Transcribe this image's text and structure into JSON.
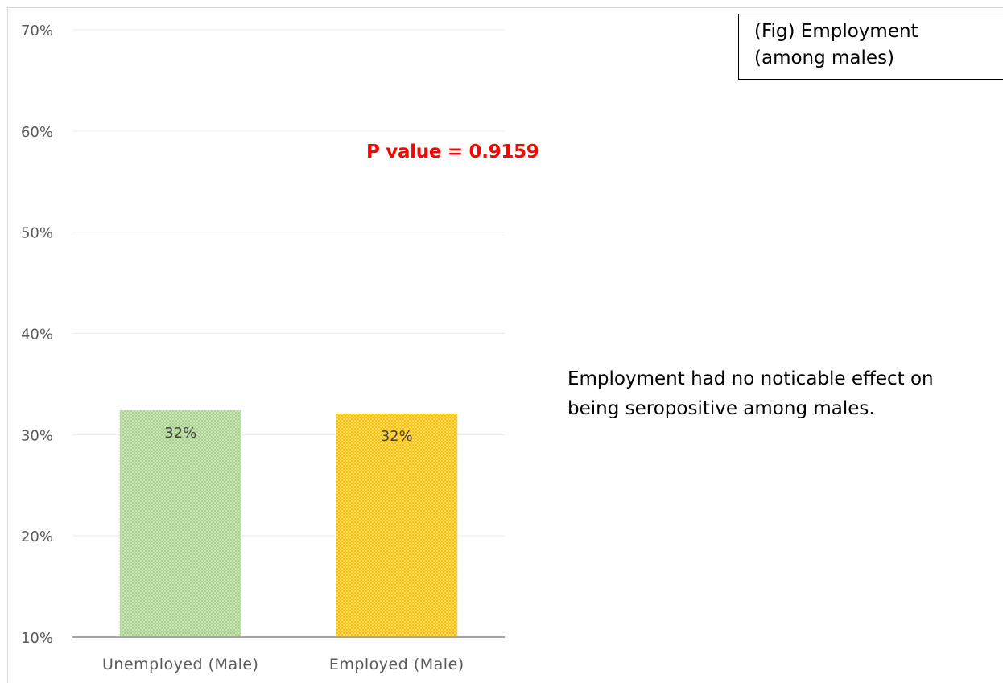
{
  "figure_label": {
    "line1": "(Fig) Employment",
    "line2": "(among males)"
  },
  "annotation": "P value = 0.9159",
  "note": {
    "line1": "Employment had no noticable effect on",
    "line2": "being seropositive among males."
  },
  "colors": {
    "unemployed": "#a9d18e",
    "employed": "#ffc000",
    "annotation": "#ff0000",
    "gridline": "#ececec",
    "axis": "#a6a6a6",
    "text": "#595959"
  },
  "chart_data": {
    "type": "bar",
    "title": "",
    "xlabel": "",
    "ylabel": "",
    "categories": [
      "Unemployed (Male)",
      "Employed (Male)"
    ],
    "values": [
      32.4,
      32.1
    ],
    "data_labels": [
      "32%",
      "32%"
    ],
    "ylim": [
      10,
      70
    ],
    "yticks": [
      10,
      20,
      30,
      40,
      50,
      60,
      70
    ],
    "ytick_labels": [
      "10%",
      "20%",
      "30%",
      "40%",
      "50%",
      "60%",
      "70%"
    ],
    "grid": true,
    "legend": "none",
    "bar_pattern": "dotted"
  }
}
